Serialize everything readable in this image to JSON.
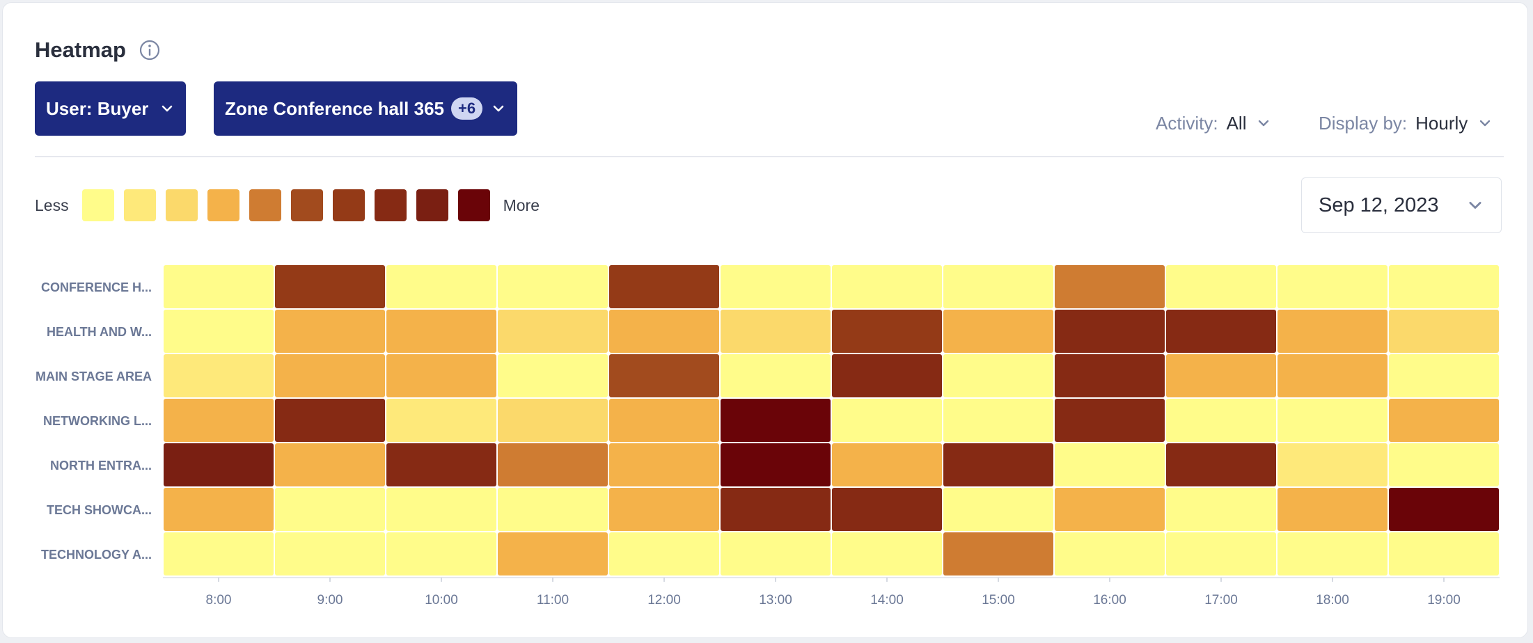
{
  "header": {
    "title": "Heatmap"
  },
  "filters": {
    "user_label": "User: Buyer",
    "zone_label": "Zone Conference hall 365",
    "zone_badge": "+6"
  },
  "selects": {
    "activity_label": "Activity:",
    "activity_value": "All",
    "display_label": "Display by:",
    "display_value": "Hourly"
  },
  "date": "Sep 12, 2023",
  "legend": {
    "less": "Less",
    "more": "More",
    "colors": [
      "#fffc8a",
      "#fee97a",
      "#fbd96b",
      "#f4b24a",
      "#cf7c32",
      "#a24b1e",
      "#943a17",
      "#862a14",
      "#7a1f12",
      "#6a0408"
    ]
  },
  "icons": {
    "info": "info-icon",
    "chevron": "chevron-down-icon"
  },
  "chart_data": {
    "type": "heatmap",
    "x": [
      "8:00",
      "9:00",
      "10:00",
      "11:00",
      "12:00",
      "13:00",
      "14:00",
      "15:00",
      "16:00",
      "17:00",
      "18:00",
      "19:00"
    ],
    "y": [
      "CONFERENCE H...",
      "HEALTH AND W...",
      "MAIN STAGE AREA",
      "NETWORKING L...",
      "NORTH ENTRA...",
      "TECH SHOWCA...",
      "TECHNOLOGY A..."
    ],
    "scale_levels": 10,
    "values": [
      [
        0,
        6,
        0,
        0,
        6,
        0,
        0,
        0,
        4,
        0,
        0,
        0
      ],
      [
        0,
        3,
        3,
        2,
        3,
        2,
        6,
        3,
        7,
        7,
        3,
        2
      ],
      [
        1,
        3,
        3,
        0,
        5,
        0,
        7,
        0,
        7,
        3,
        3,
        0
      ],
      [
        3,
        7,
        1,
        2,
        3,
        9,
        0,
        0,
        7,
        0,
        0,
        3
      ],
      [
        8,
        3,
        7,
        4,
        3,
        9,
        3,
        7,
        0,
        7,
        1,
        0
      ],
      [
        3,
        0,
        0,
        0,
        3,
        7,
        7,
        0,
        3,
        0,
        3,
        9
      ],
      [
        0,
        0,
        0,
        3,
        0,
        0,
        0,
        4,
        0,
        0,
        0,
        0
      ]
    ]
  }
}
